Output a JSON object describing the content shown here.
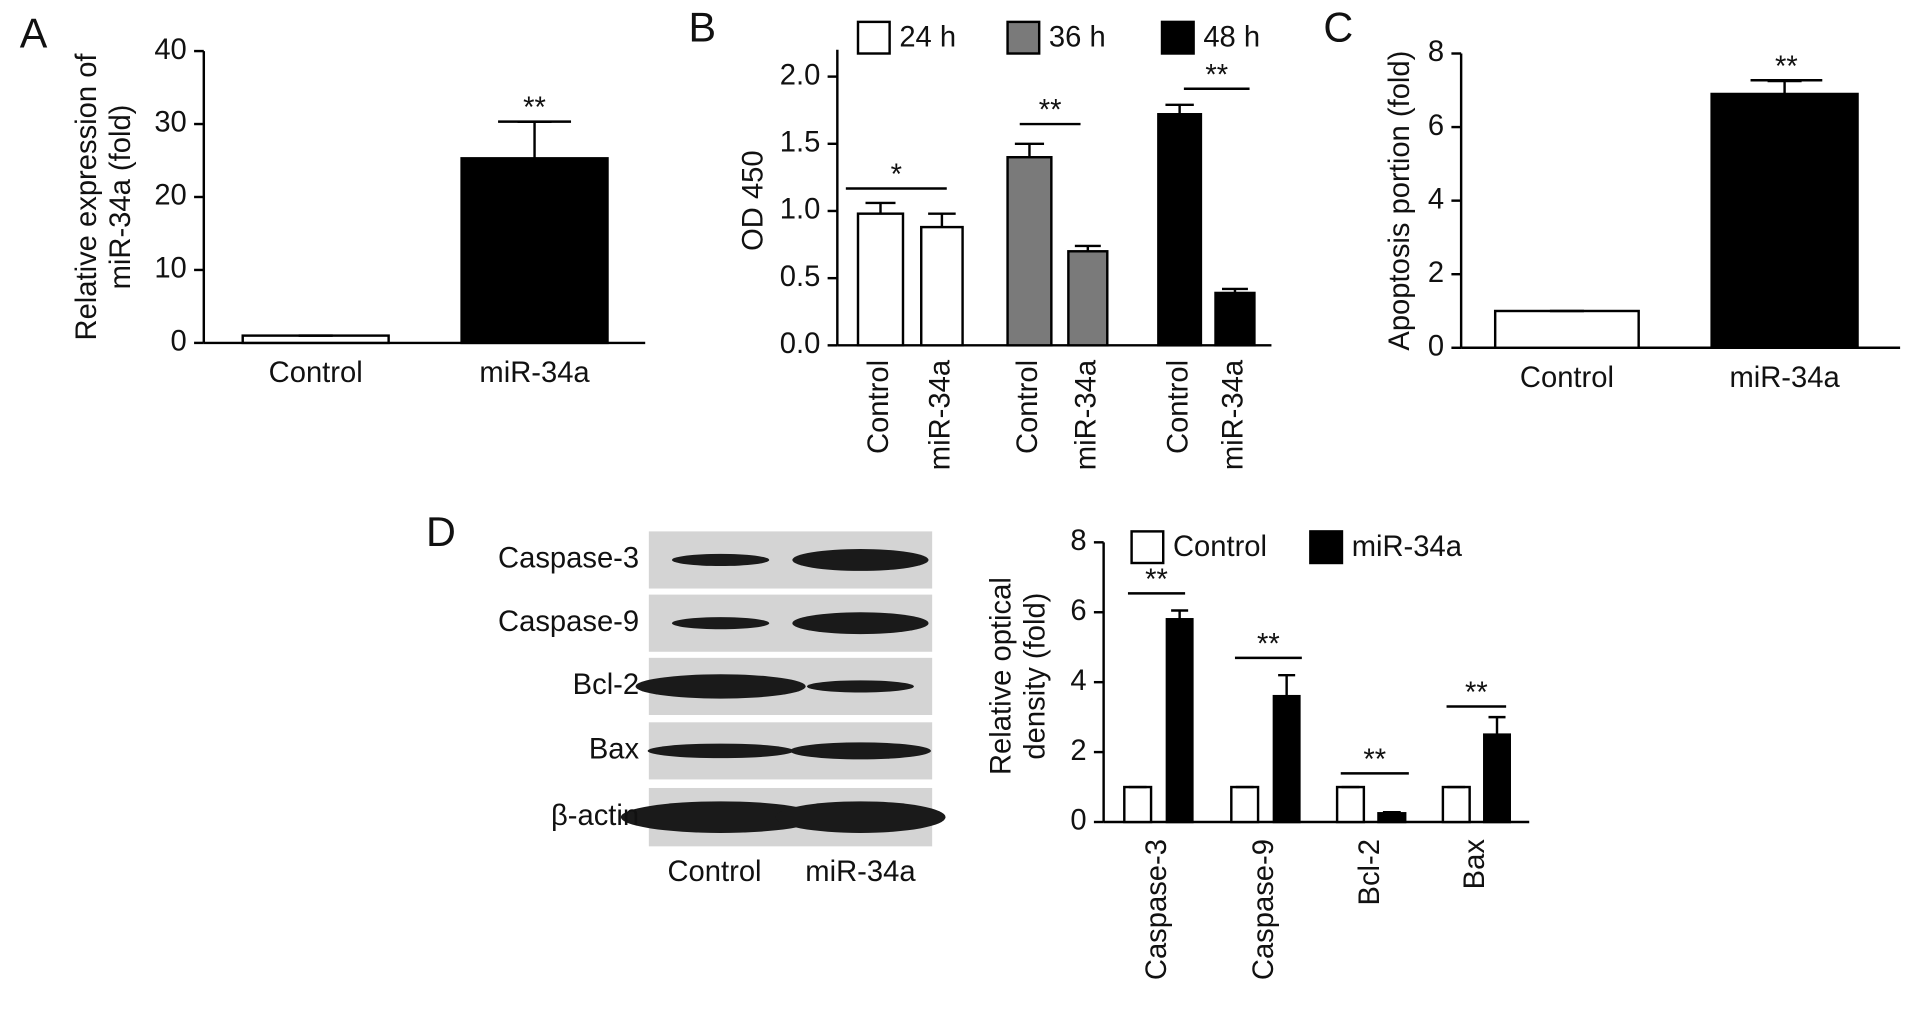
{
  "chart_data": [
    {
      "type": "bar",
      "panel": "A",
      "ylabel": [
        "Relative expression of",
        "miR-34a (fold)"
      ],
      "categories": [
        "Control",
        "miR-34a"
      ],
      "values": [
        1.0,
        25.3
      ],
      "errors": [
        0,
        5.0
      ],
      "colors": [
        "#ffffff",
        "#000000"
      ],
      "ylim": [
        0,
        40
      ],
      "yticks": [
        0,
        10,
        20,
        30,
        40
      ],
      "annotations": [
        "**"
      ]
    },
    {
      "type": "clustered_bar",
      "panel": "B",
      "ylabel": [
        "OD 450"
      ],
      "categories": [
        "Control",
        "miR-34a"
      ],
      "series": [
        {
          "name": "24 h",
          "color": "#ffffff",
          "values": [
            0.98,
            0.88
          ],
          "errors": [
            0.08,
            0.1
          ]
        },
        {
          "name": "36 h",
          "color": "#7a7a7a",
          "values": [
            1.4,
            0.7
          ],
          "errors": [
            0.1,
            0.04
          ]
        },
        {
          "name": "48 h",
          "color": "#000000",
          "values": [
            1.72,
            0.39
          ],
          "errors": [
            0.07,
            0.03
          ]
        }
      ],
      "ylim": [
        0,
        2.2
      ],
      "yticks": [
        {
          "value": 0,
          "label": "0.0"
        },
        0.5,
        {
          "value": 1,
          "label": "1.0"
        },
        1.5,
        {
          "value": 2,
          "label": "2.0"
        }
      ],
      "annotations": [
        "*",
        "**",
        "**"
      ]
    },
    {
      "type": "bar",
      "panel": "C",
      "ylabel": [
        "Apoptosis portion (fold)"
      ],
      "categories": [
        "Control",
        "miR-34a"
      ],
      "values": [
        1.0,
        6.9
      ],
      "errors": [
        0,
        0.35
      ],
      "colors": [
        "#ffffff",
        "#000000"
      ],
      "ylim": [
        0,
        8
      ],
      "yticks": [
        0,
        2,
        4,
        6,
        8
      ],
      "annotations": [
        "**"
      ]
    },
    {
      "type": "grouped_bar",
      "panel": "D",
      "ylabel": [
        "Relative optical",
        "density (fold)"
      ],
      "categories": [
        "Caspase-3",
        "Caspase-9",
        "Bcl-2",
        "Bax"
      ],
      "series": [
        {
          "name": "Control",
          "color": "#ffffff",
          "values": [
            1,
            1,
            1,
            1
          ],
          "errors": [
            0,
            0,
            0,
            0
          ]
        },
        {
          "name": "miR-34a",
          "color": "#000000",
          "values": [
            5.8,
            3.6,
            0.25,
            2.5
          ],
          "errors": [
            0.25,
            0.6,
            0.03,
            0.5
          ]
        }
      ],
      "ylim": [
        0,
        8
      ],
      "yticks": [
        0,
        2,
        4,
        6,
        8
      ],
      "annotations": [
        "**",
        "**",
        "**",
        "**"
      ]
    }
  ],
  "western_blot": {
    "rows": [
      "Caspase-3",
      "Caspase-9",
      "Bcl-2",
      "Bax",
      "β-actin"
    ],
    "columns": [
      "Control",
      "miR-34a"
    ]
  }
}
